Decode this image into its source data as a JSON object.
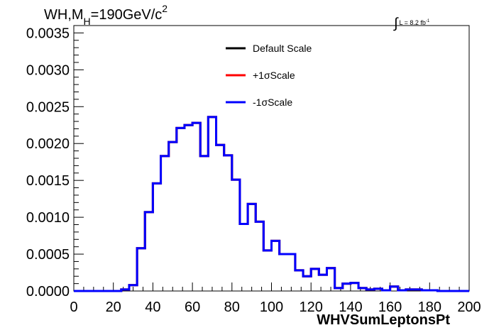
{
  "title": {
    "prefix": "WH,M",
    "subscript": "H",
    "middle": "=190GeV/c",
    "superscript": "2"
  },
  "luminosity": {
    "symbol": "∫",
    "text": "L = 8.2 fb",
    "superscript": "-1"
  },
  "chart_data": {
    "type": "line",
    "drawstyle": "steps",
    "xlabel": "WHVSumLeptonsPt",
    "ylabel": "",
    "xlim": [
      0,
      200
    ],
    "ylim": [
      0,
      0.0036
    ],
    "x_ticks": [
      0,
      20,
      40,
      60,
      80,
      100,
      120,
      140,
      160,
      180,
      200
    ],
    "x_tick_labels": [
      "0",
      "20",
      "40",
      "60",
      "80",
      "100",
      "120",
      "140",
      "160",
      "180",
      "200"
    ],
    "y_ticks": [
      0,
      0.0005,
      0.001,
      0.0015,
      0.002,
      0.0025,
      0.003,
      0.0035
    ],
    "y_tick_labels": [
      "0.0000",
      "0.0005",
      "0.0010",
      "0.0015",
      "0.0020",
      "0.0025",
      "0.0030",
      "0.0035"
    ],
    "bin_width": 4,
    "bin_edges_start": 0,
    "grid": false,
    "legend_position": "top-center",
    "series": [
      {
        "name": "Default Scale",
        "color": "#000000",
        "values": [
          0,
          0,
          0,
          0,
          0,
          0,
          2e-05,
          8e-05,
          0.00058,
          0.00107,
          0.00146,
          0.00183,
          0.00202,
          0.00221,
          0.00225,
          0.00228,
          0.00183,
          0.00236,
          0.00198,
          0.00184,
          0.00151,
          0.00091,
          0.00118,
          0.00094,
          0.00055,
          0.00068,
          0.0005,
          0.0005,
          0.00028,
          0.0002,
          0.0003,
          0.00022,
          0.00031,
          4e-05,
          0.0001,
          0.00011,
          4e-05,
          2e-05,
          3e-05,
          1e-05,
          6e-05,
          1e-05,
          2e-05,
          2e-05,
          1e-05,
          1e-05,
          0,
          0,
          0,
          0
        ]
      },
      {
        "name": "+1σScale",
        "color": "#ff0000",
        "values": [
          0,
          0,
          0,
          0,
          0,
          0,
          2e-05,
          8e-05,
          0.00058,
          0.00107,
          0.00146,
          0.00183,
          0.00202,
          0.00221,
          0.00225,
          0.00228,
          0.00183,
          0.00236,
          0.00198,
          0.00184,
          0.00151,
          0.00091,
          0.00118,
          0.00094,
          0.00055,
          0.00068,
          0.0005,
          0.0005,
          0.00028,
          0.0002,
          0.0003,
          0.00022,
          0.00031,
          4e-05,
          0.0001,
          0.00011,
          4e-05,
          2e-05,
          3e-05,
          1e-05,
          6e-05,
          1e-05,
          2e-05,
          2e-05,
          1e-05,
          1e-05,
          0,
          0,
          0,
          0
        ]
      },
      {
        "name": "-1σScale",
        "color": "#0000ff",
        "values": [
          0,
          0,
          0,
          0,
          0,
          0,
          2e-05,
          8e-05,
          0.00058,
          0.00107,
          0.00146,
          0.00183,
          0.00202,
          0.00221,
          0.00225,
          0.00228,
          0.00183,
          0.00236,
          0.00198,
          0.00184,
          0.00151,
          0.00091,
          0.00118,
          0.00094,
          0.00055,
          0.00068,
          0.0005,
          0.0005,
          0.00028,
          0.0002,
          0.0003,
          0.00022,
          0.00031,
          4e-05,
          0.0001,
          0.00011,
          4e-05,
          2e-05,
          3e-05,
          1e-05,
          6e-05,
          1e-05,
          2e-05,
          2e-05,
          1e-05,
          1e-05,
          0,
          0,
          0,
          0
        ]
      }
    ]
  }
}
